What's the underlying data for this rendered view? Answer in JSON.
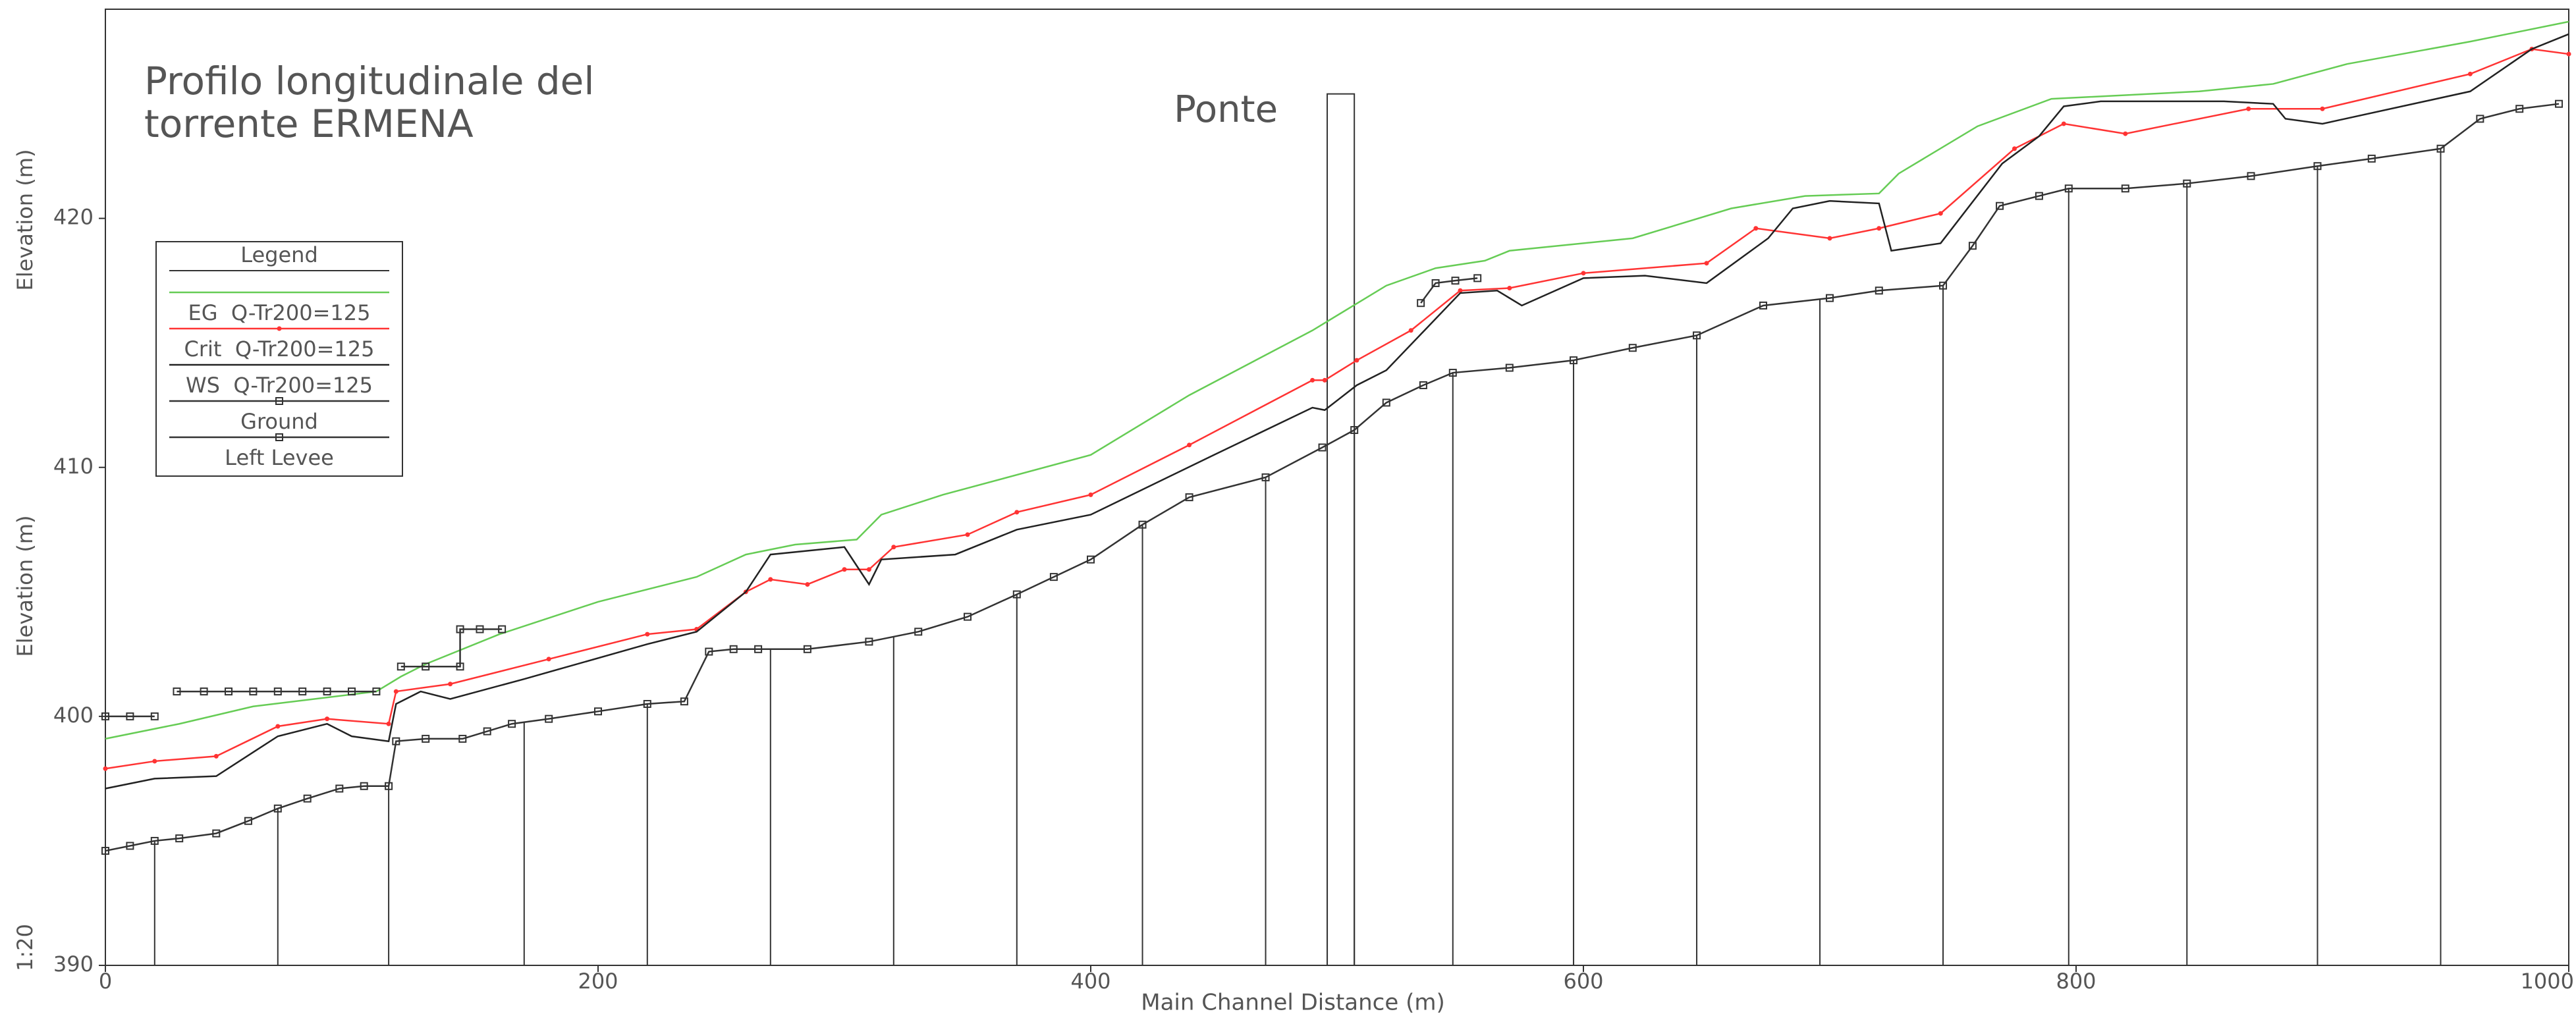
{
  "chart_data": {
    "type": "line",
    "title": [
      "Profilo longitudinale del",
      "torrente ERMENA"
    ],
    "ylabels": [
      "Elevation (m)",
      "Elevation (m)"
    ],
    "scale": "1:20",
    "xlabel": "Main Channel Distance (m)",
    "legend_title": "Legend",
    "xlim": [
      0,
      1000
    ],
    "ylim": [
      390,
      428.4
    ],
    "xticks": [
      0,
      200,
      400,
      600,
      800,
      1000
    ],
    "yticks": [
      390,
      400,
      410,
      420
    ],
    "series": [
      {
        "name": "EG  Q-Tr200=125",
        "color": "#66cc55",
        "marker": "none",
        "x": [
          0,
          30,
          60,
          110,
          120,
          130,
          160,
          200,
          240,
          260,
          280,
          305,
          315,
          340,
          400,
          440,
          490,
          520,
          540,
          560,
          570,
          620,
          660,
          690,
          720,
          728,
          760,
          790,
          850,
          880,
          910,
          960,
          1000
        ],
        "values": [
          399.1,
          399.7,
          400.4,
          401.0,
          401.6,
          402.1,
          403.3,
          404.6,
          405.6,
          406.5,
          406.9,
          407.1,
          408.1,
          408.9,
          410.5,
          412.9,
          415.5,
          417.3,
          418.0,
          418.3,
          418.7,
          419.2,
          420.4,
          420.9,
          421.0,
          421.8,
          423.7,
          424.8,
          425.1,
          425.4,
          426.2,
          427.1,
          427.9
        ]
      },
      {
        "name": "Crit  Q-Tr200=125",
        "color": "#ff3333",
        "marker": "dot",
        "x": [
          0,
          20,
          45,
          70,
          90,
          115,
          118,
          140,
          180,
          220,
          240,
          260,
          270,
          285,
          300,
          310,
          320,
          350,
          370,
          400,
          440,
          490,
          495,
          508,
          530,
          550,
          570,
          600,
          650,
          670,
          700,
          720,
          745,
          775,
          795,
          820,
          870,
          900,
          960,
          985,
          1000
        ],
        "values": [
          397.9,
          398.2,
          398.4,
          399.6,
          399.9,
          399.7,
          401.0,
          401.3,
          402.3,
          403.3,
          403.5,
          405.0,
          405.5,
          405.3,
          405.9,
          405.9,
          406.8,
          407.3,
          408.2,
          408.9,
          410.9,
          413.5,
          413.5,
          414.3,
          415.5,
          417.1,
          417.2,
          417.8,
          418.2,
          419.6,
          419.2,
          419.6,
          420.2,
          422.8,
          423.8,
          423.4,
          424.4,
          424.4,
          425.8,
          426.8,
          426.6
        ]
      },
      {
        "name": "WS  Q-Tr200=125",
        "color": "#222222",
        "marker": "none",
        "x": [
          0,
          20,
          45,
          70,
          90,
          100,
          115,
          118,
          128,
          140,
          170,
          220,
          240,
          260,
          270,
          300,
          310,
          315,
          345,
          370,
          400,
          450,
          490,
          495,
          508,
          520,
          550,
          565,
          575,
          600,
          625,
          650,
          675,
          685,
          700,
          720,
          725,
          745,
          770,
          785,
          795,
          810,
          860,
          880,
          885,
          900,
          960,
          985,
          1000
        ],
        "values": [
          397.1,
          397.5,
          397.6,
          399.2,
          399.7,
          399.2,
          399.0,
          400.5,
          401.0,
          400.7,
          401.5,
          402.9,
          403.4,
          405.0,
          406.5,
          406.8,
          405.3,
          406.3,
          406.5,
          407.5,
          408.1,
          410.5,
          412.4,
          412.3,
          413.3,
          413.9,
          417.0,
          417.1,
          416.5,
          417.6,
          417.7,
          417.4,
          419.2,
          420.4,
          420.7,
          420.6,
          418.7,
          419.0,
          422.2,
          423.3,
          424.5,
          424.7,
          424.7,
          424.6,
          424.0,
          423.8,
          425.1,
          426.8,
          427.4
        ]
      },
      {
        "name": "Ground",
        "color": "#333333",
        "marker": "square",
        "x": [
          0,
          10,
          20,
          30,
          45,
          58,
          70,
          82,
          95,
          105,
          115,
          118,
          130,
          145,
          155,
          165,
          180,
          200,
          220,
          235,
          245,
          255,
          265,
          285,
          310,
          330,
          350,
          370,
          385,
          400,
          421,
          440,
          471,
          494,
          507,
          520,
          535,
          547,
          570,
          596,
          620,
          646,
          673,
          700,
          720,
          746,
          758,
          769,
          785,
          797,
          820,
          845,
          871,
          898,
          920,
          948,
          964,
          980,
          996
        ],
        "values": [
          394.6,
          394.8,
          395.0,
          395.1,
          395.3,
          395.8,
          396.3,
          396.7,
          397.1,
          397.2,
          397.2,
          399.0,
          399.1,
          399.1,
          399.4,
          399.7,
          399.9,
          400.2,
          400.5,
          400.6,
          402.6,
          402.7,
          402.7,
          402.7,
          403.0,
          403.4,
          404.0,
          404.9,
          405.6,
          406.3,
          407.7,
          408.8,
          409.6,
          410.8,
          411.5,
          412.6,
          413.3,
          413.8,
          414.0,
          414.3,
          414.8,
          415.3,
          416.5,
          416.8,
          417.1,
          417.3,
          418.9,
          420.5,
          420.9,
          421.2,
          421.2,
          421.4,
          421.7,
          422.1,
          422.4,
          422.8,
          424.0,
          424.4,
          424.6
        ]
      },
      {
        "name": "Left Levee",
        "color": "#333333",
        "marker": "square",
        "x": [
          0,
          10,
          20,
          25,
          29,
          40,
          50,
          60,
          70,
          80,
          90,
          100,
          110,
          115,
          120,
          130,
          144,
          144,
          152,
          161,
          300,
          534,
          540,
          548,
          557
        ],
        "values": [
          400,
          400,
          400,
          null,
          401,
          401,
          401,
          401,
          401,
          401,
          401,
          401,
          401,
          null,
          402,
          402,
          402,
          403.5,
          403.5,
          403.5,
          null,
          416.6,
          417.4,
          417.5,
          417.6
        ]
      }
    ],
    "stations": [
      20,
      70,
      115,
      170,
      220,
      270,
      320,
      370,
      421,
      471,
      496,
      507,
      547,
      596,
      646,
      696,
      746,
      797,
      845,
      898,
      948
    ],
    "bridge": {
      "label": "Ponte",
      "x": [
        496,
        507
      ],
      "top": 425
    }
  }
}
